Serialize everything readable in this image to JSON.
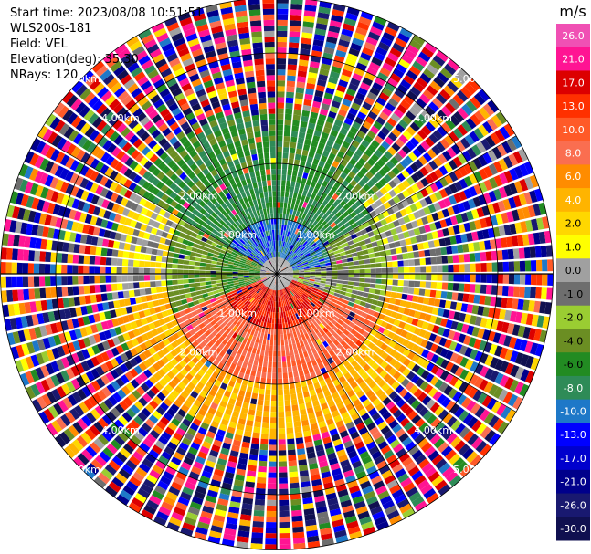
{
  "header": {
    "start_time": "Start time: 2023/08/08 10:51:51",
    "instrument": "WLS200s-181",
    "field": "Field: VEL",
    "elevation": "Elevation(deg): 35.30",
    "nrays": "NRays: 120"
  },
  "chart_data": {
    "type": "heatmap",
    "projection": "polar-ppi",
    "field": "VEL",
    "unit": "m/s",
    "n_rays": 120,
    "elevation_deg": 35.3,
    "max_range_km": 5.0,
    "range_rings_km": [
      1.0,
      2.0,
      4.0,
      5.0
    ],
    "ring_labels": [
      "1.00km",
      "2.00km",
      "4.00km",
      "5.00km"
    ],
    "spoke_angles_deg": [
      0,
      30,
      60,
      90,
      120,
      150,
      180,
      210,
      240,
      270,
      300,
      330
    ],
    "colorbar": {
      "label": "m/s",
      "tick_labels": [
        "26.0",
        "21.0",
        "17.0",
        "13.0",
        "10.0",
        "8.0",
        "6.0",
        "4.0",
        "2.0",
        "1.0",
        "0.0",
        "-1.0",
        "-2.0",
        "-4.0",
        "-6.0",
        "-8.0",
        "-10.0",
        "-13.0",
        "-17.0",
        "-21.0",
        "-26.0",
        "-30.0"
      ],
      "bounds": [
        30,
        26,
        21,
        17,
        13,
        10,
        8,
        6,
        4,
        2,
        1,
        0,
        -1,
        -2,
        -4,
        -6,
        -8,
        -10,
        -13,
        -17,
        -21,
        -26,
        -30
      ],
      "colors": [
        "#f050b4",
        "#ff1493",
        "#dc0000",
        "#ff3000",
        "#ff5a28",
        "#fa6e50",
        "#ff8c00",
        "#ffb400",
        "#ffd700",
        "#ffff00",
        "#a0a0a0",
        "#6e6e6e",
        "#9acd32",
        "#6b8e23",
        "#228b22",
        "#2e8b57",
        "#1e78c8",
        "#0000ff",
        "#0000cd",
        "#00008b",
        "#191970",
        "#101050"
      ]
    },
    "regions": [
      {
        "from_km": 0.0,
        "to_km": 0.3,
        "az_from": 0,
        "az_to": 360,
        "mean_ms": 0.0,
        "noise": 0
      },
      {
        "from_km": 0.3,
        "to_km": 1.0,
        "az_from": 300,
        "az_to": 80,
        "mean_ms": -9.0,
        "noise": 1.5
      },
      {
        "from_km": 0.3,
        "to_km": 1.0,
        "az_from": 80,
        "az_to": 110,
        "mean_ms": -1.0,
        "noise": 1.5
      },
      {
        "from_km": 0.3,
        "to_km": 1.0,
        "az_from": 110,
        "az_to": 250,
        "mean_ms": 17.0,
        "noise": 2.0
      },
      {
        "from_km": 0.3,
        "to_km": 1.0,
        "az_from": 250,
        "az_to": 300,
        "mean_ms": -4.0,
        "noise": 1.5
      },
      {
        "from_km": 1.0,
        "to_km": 2.0,
        "az_from": 300,
        "az_to": 60,
        "mean_ms": -6.0,
        "noise": 1.5
      },
      {
        "from_km": 1.0,
        "to_km": 2.0,
        "az_from": 60,
        "az_to": 110,
        "mean_ms": -2.0,
        "noise": 2.0
      },
      {
        "from_km": 1.0,
        "to_km": 2.0,
        "az_from": 110,
        "az_to": 250,
        "mean_ms": 10.0,
        "noise": 2.0
      },
      {
        "from_km": 1.0,
        "to_km": 2.0,
        "az_from": 250,
        "az_to": 300,
        "mean_ms": -3.0,
        "noise": 1.5
      },
      {
        "from_km": 2.0,
        "to_km": 3.0,
        "az_from": 300,
        "az_to": 50,
        "mean_ms": -5.0,
        "noise": 2.0
      },
      {
        "from_km": 2.0,
        "to_km": 3.0,
        "az_from": 50,
        "az_to": 100,
        "mean_ms": 0.5,
        "noise": 2.5
      },
      {
        "from_km": 2.0,
        "to_km": 3.0,
        "az_from": 100,
        "az_to": 260,
        "mean_ms": 5.0,
        "noise": 2.0
      },
      {
        "from_km": 2.0,
        "to_km": 3.0,
        "az_from": 260,
        "az_to": 300,
        "mean_ms": 1.0,
        "noise": 2.0
      },
      {
        "from_km": 3.0,
        "to_km": 5.0,
        "az_from": 0,
        "az_to": 360,
        "mean_ms": 0.0,
        "noise": 30
      }
    ]
  }
}
